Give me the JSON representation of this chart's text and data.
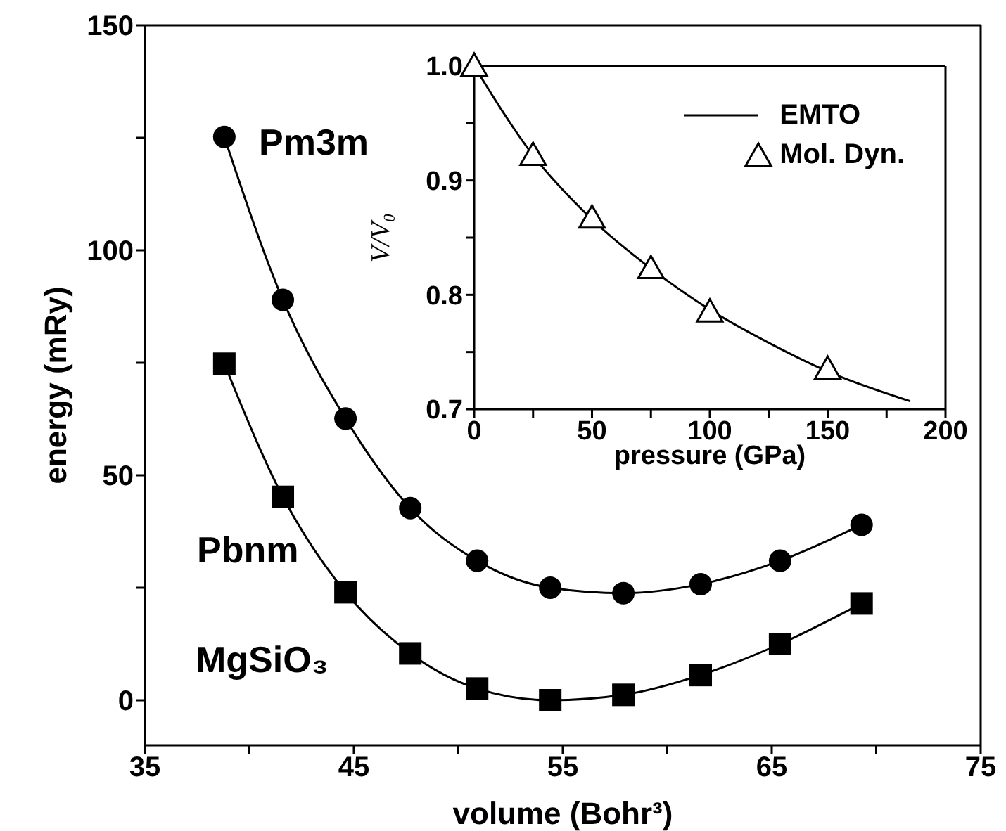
{
  "chart_data": [
    {
      "type": "line",
      "xlabel": "volume (Bohr³)",
      "ylabel": "energy (mRy)",
      "xlim": [
        35,
        75
      ],
      "xticks": [
        35,
        {
          "value": 40,
          "label": null
        },
        45,
        {
          "value": 50,
          "label": null
        },
        55,
        {
          "value": 60,
          "label": null
        },
        65,
        {
          "value": 70,
          "label": null
        },
        75
      ],
      "ylim": [
        -10,
        150
      ],
      "yticks": [
        0,
        {
          "value": 25,
          "label": null
        },
        50,
        {
          "value": 75,
          "label": null
        },
        100,
        {
          "value": 125,
          "label": null
        },
        150
      ],
      "line_style": "solid",
      "annotations": [
        "Pm3m",
        "Pbnm",
        "MgSiO₃"
      ],
      "x": [
        38.8,
        41.6,
        44.6,
        47.7,
        50.9,
        54.4,
        57.9,
        61.6,
        65.4,
        69.3
      ],
      "series": [
        {
          "color": "#000000",
          "marker": "circle",
          "values": [
            125.2,
            89,
            62.6,
            42.7,
            31,
            25,
            23.8,
            25.8,
            31,
            39
          ]
        },
        {
          "color": "#000000",
          "marker": "square",
          "values": [
            74.8,
            45.2,
            24,
            10.4,
            2.6,
            0,
            1.2,
            5.6,
            12.5,
            21.5
          ]
        }
      ]
    },
    {
      "type": "line",
      "xlabel": "pressure (GPa)",
      "ylabel": "V/V₀",
      "xlim": [
        0,
        200
      ],
      "xticks": [
        0,
        {
          "value": 25,
          "label": null
        },
        50,
        {
          "value": 75,
          "label": null
        },
        100,
        {
          "value": 125,
          "label": null
        },
        150,
        {
          "value": 175,
          "label": null
        },
        200
      ],
      "ylim": [
        0.7,
        1.0
      ],
      "yticks": [
        {
          "value": 0.7,
          "label": "0.7"
        },
        {
          "value": 0.75,
          "label": null
        },
        {
          "value": 0.8,
          "label": "0.8"
        },
        {
          "value": 0.85,
          "label": null
        },
        {
          "value": 0.9,
          "label": "0.9"
        },
        {
          "value": 0.95,
          "label": null
        },
        {
          "value": 1.0,
          "label": "1.0"
        }
      ],
      "legend": "top right",
      "line_style": "solid",
      "series": [
        {
          "name": "EMTO",
          "marker": "none",
          "color": "#000000",
          "x": [
            0,
            25,
            50,
            75,
            100,
            125,
            150,
            185
          ],
          "values": [
            1.0,
            0.922,
            0.866,
            0.823,
            0.787,
            0.758,
            0.733,
            0.707
          ]
        },
        {
          "name": "Mol. Dyn.",
          "type": "scatter",
          "marker": "triangle",
          "color": "#000000",
          "x": [
            0,
            25,
            50,
            75,
            100,
            150
          ],
          "values": [
            1.0,
            0.922,
            0.867,
            0.823,
            0.785,
            0.735
          ]
        }
      ]
    }
  ]
}
